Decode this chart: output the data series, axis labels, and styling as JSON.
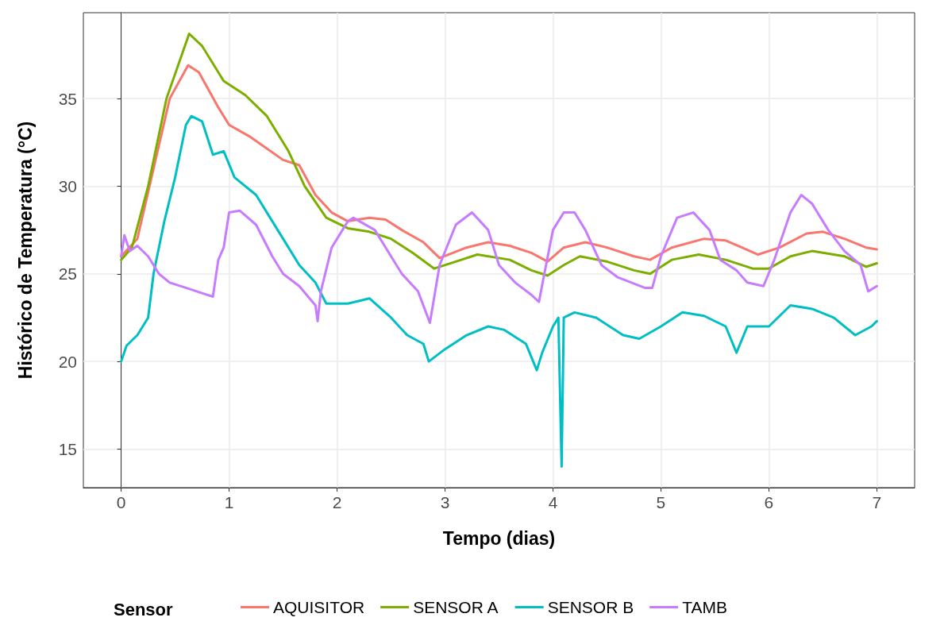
{
  "chart_data": {
    "type": "line",
    "xlabel": "Tempo (dias)",
    "ylabel": "Histórico de Temperatura (°C)",
    "legend_title": "Sensor",
    "legend": "bottom",
    "grid": true,
    "marker": "none",
    "line_style": "solid",
    "xlim": [
      -0.35,
      7.35
    ],
    "xticks": [
      0,
      1,
      2,
      3,
      4,
      5,
      6,
      7
    ],
    "ylim": [
      12.8,
      39.9
    ],
    "yticks": [
      15,
      20,
      25,
      30,
      35
    ],
    "series": [
      {
        "name": "AQUISITOR",
        "color": "#f8766d",
        "x": [
          0,
          0.15,
          0.3,
          0.45,
          0.62,
          0.72,
          0.9,
          1.0,
          1.2,
          1.5,
          1.65,
          1.8,
          1.95,
          2.1,
          2.3,
          2.45,
          2.6,
          2.8,
          2.95,
          3.2,
          3.4,
          3.6,
          3.8,
          3.95,
          4.1,
          4.3,
          4.5,
          4.75,
          4.9,
          5.1,
          5.4,
          5.6,
          5.75,
          5.9,
          6.1,
          6.35,
          6.5,
          6.7,
          6.9,
          7.0
        ],
        "values": [
          26,
          27,
          31,
          35,
          36.9,
          36.5,
          34.5,
          33.5,
          32.8,
          31.5,
          31.2,
          29.5,
          28.5,
          28,
          28.2,
          28.1,
          27.5,
          26.8,
          25.9,
          26.5,
          26.8,
          26.6,
          26.2,
          25.7,
          26.5,
          26.8,
          26.5,
          26,
          25.8,
          26.5,
          27,
          26.9,
          26.5,
          26.1,
          26.5,
          27.3,
          27.4,
          27,
          26.5,
          26.4
        ]
      },
      {
        "name": "SENSOR A",
        "color": "#7cae00",
        "x": [
          0,
          0.1,
          0.25,
          0.42,
          0.63,
          0.75,
          0.95,
          1.15,
          1.35,
          1.55,
          1.7,
          1.9,
          2.1,
          2.3,
          2.5,
          2.7,
          2.9,
          3.1,
          3.3,
          3.6,
          3.8,
          3.95,
          4.1,
          4.25,
          4.5,
          4.75,
          4.9,
          5.1,
          5.35,
          5.6,
          5.85,
          6.0,
          6.2,
          6.4,
          6.7,
          6.9,
          7.0
        ],
        "values": [
          25.8,
          26.5,
          30,
          35,
          38.7,
          38,
          36,
          35.2,
          34,
          32,
          30,
          28.2,
          27.6,
          27.4,
          27,
          26.2,
          25.3,
          25.7,
          26.1,
          25.8,
          25.2,
          24.9,
          25.5,
          26,
          25.7,
          25.2,
          25,
          25.8,
          26.1,
          25.8,
          25.3,
          25.3,
          26,
          26.3,
          26,
          25.4,
          25.6
        ]
      },
      {
        "name": "SENSOR B",
        "color": "#00bfc4",
        "x": [
          0,
          0.05,
          0.15,
          0.25,
          0.3,
          0.4,
          0.5,
          0.6,
          0.65,
          0.75,
          0.85,
          0.95,
          1.05,
          1.25,
          1.4,
          1.5,
          1.65,
          1.8,
          1.9,
          2.1,
          2.3,
          2.5,
          2.65,
          2.8,
          2.85,
          3.0,
          3.2,
          3.4,
          3.55,
          3.75,
          3.85,
          3.9,
          4.0,
          4.05,
          4.08,
          4.1,
          4.2,
          4.4,
          4.65,
          4.8,
          5.0,
          5.2,
          5.4,
          5.6,
          5.7,
          5.8,
          6.0,
          6.2,
          6.4,
          6.6,
          6.8,
          6.95,
          7.0
        ],
        "values": [
          20,
          20.9,
          21.5,
          22.5,
          25,
          28,
          30.5,
          33.5,
          34,
          33.7,
          31.8,
          32,
          30.5,
          29.5,
          28,
          27,
          25.5,
          24.5,
          23.3,
          23.3,
          23.6,
          22.5,
          21.5,
          21,
          20,
          20.7,
          21.5,
          22,
          21.8,
          21,
          19.5,
          20.5,
          22,
          22.5,
          14,
          22.5,
          22.8,
          22.5,
          21.5,
          21.3,
          22,
          22.8,
          22.6,
          22,
          20.5,
          22,
          22,
          23.2,
          23,
          22.5,
          21.5,
          22,
          22.3
        ]
      },
      {
        "name": "TAMB",
        "color": "#c77cff",
        "x": [
          0,
          0.03,
          0.08,
          0.15,
          0.25,
          0.35,
          0.45,
          0.6,
          0.75,
          0.85,
          0.9,
          0.95,
          1.0,
          1.1,
          1.25,
          1.4,
          1.5,
          1.65,
          1.8,
          1.82,
          1.85,
          1.95,
          2.1,
          2.15,
          2.35,
          2.5,
          2.6,
          2.75,
          2.86,
          2.95,
          3.1,
          3.25,
          3.4,
          3.5,
          3.65,
          3.8,
          3.87,
          3.92,
          4.0,
          4.1,
          4.2,
          4.3,
          4.45,
          4.6,
          4.85,
          4.92,
          5.0,
          5.15,
          5.3,
          5.45,
          5.55,
          5.7,
          5.8,
          5.95,
          6.05,
          6.2,
          6.3,
          6.4,
          6.55,
          6.7,
          6.85,
          6.92,
          7.0
        ],
        "values": [
          26,
          27.2,
          26.3,
          26.6,
          26,
          25,
          24.5,
          24.2,
          23.9,
          23.7,
          25.8,
          26.5,
          28.5,
          28.6,
          27.8,
          26,
          25,
          24.3,
          23.2,
          22.3,
          24,
          26.5,
          28,
          28.2,
          27.5,
          26,
          25,
          24,
          22.2,
          25.5,
          27.8,
          28.5,
          27.5,
          25.5,
          24.5,
          23.8,
          23.4,
          25,
          27.5,
          28.5,
          28.5,
          27.5,
          25.5,
          24.8,
          24.2,
          24.2,
          26,
          28.2,
          28.5,
          27.5,
          25.8,
          25.2,
          24.5,
          24.3,
          25.8,
          28.5,
          29.5,
          29,
          27.5,
          26.3,
          25.5,
          24,
          24.3
        ]
      }
    ]
  }
}
